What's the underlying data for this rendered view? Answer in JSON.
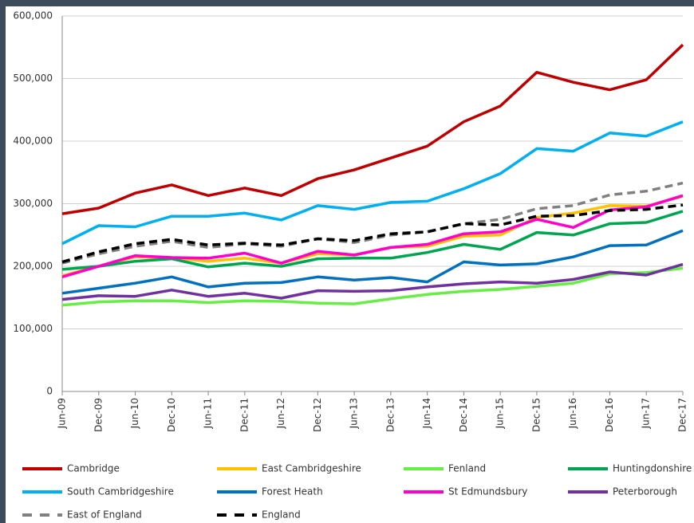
{
  "chart_data": {
    "type": "line",
    "categories": [
      "Jun-09",
      "Dec-09",
      "Jun-10",
      "Dec-10",
      "Jun-11",
      "Dec-11",
      "Jun-12",
      "Dec-12",
      "Jun-13",
      "Dec-13",
      "Jun-14",
      "Dec-14",
      "Jun-15",
      "Dec-15",
      "Jun-16",
      "Dec-16",
      "Jun-17",
      "Dec-17"
    ],
    "ylim": [
      0,
      600000
    ],
    "yticks": [
      0,
      {
        "value": 100000,
        "label": "100,000"
      },
      {
        "value": 200000,
        "label": "200,000"
      },
      {
        "value": 300000,
        "label": "300,000"
      },
      {
        "value": 400000,
        "label": "400,000"
      },
      {
        "value": 500000,
        "label": "500,000"
      },
      {
        "value": 600000,
        "label": "600,000"
      }
    ],
    "grid": true,
    "legend": "bottom",
    "series": [
      {
        "name": "Cambridge",
        "color": "#c00000",
        "dashed": false,
        "values": [
          284000,
          293000,
          317000,
          330000,
          313000,
          325000,
          313000,
          340000,
          354000,
          373000,
          392000,
          431000,
          456000,
          510000,
          494000,
          482000,
          498000,
          554000
        ]
      },
      {
        "name": "East Cambridgeshire",
        "color": "#ffc000",
        "dashed": false,
        "values": [
          185000,
          200000,
          215000,
          213000,
          208000,
          213000,
          205000,
          220000,
          218000,
          230000,
          232000,
          248000,
          250000,
          278000,
          285000,
          297000,
          296000,
          312000
        ]
      },
      {
        "name": "Fenland",
        "color": "#66ee44",
        "dashed": false,
        "values": [
          138000,
          143000,
          145000,
          145000,
          142000,
          145000,
          144000,
          141000,
          140000,
          148000,
          155000,
          160000,
          163000,
          168000,
          173000,
          188000,
          190000,
          197000
        ]
      },
      {
        "name": "Huntingdonshire",
        "color": "#00a550",
        "dashed": false,
        "values": [
          195000,
          200000,
          208000,
          212000,
          199000,
          205000,
          200000,
          212000,
          213000,
          213000,
          222000,
          235000,
          227000,
          254000,
          250000,
          268000,
          270000,
          288000
        ]
      },
      {
        "name": "South Cambridgeshire",
        "color": "#00b0f0",
        "dashed": false,
        "values": [
          236000,
          265000,
          263000,
          280000,
          280000,
          285000,
          274000,
          297000,
          291000,
          302000,
          304000,
          324000,
          348000,
          388000,
          384000,
          413000,
          408000,
          431000
        ]
      },
      {
        "name": "Forest Heath",
        "color": "#0070c0",
        "dashed": false,
        "values": [
          157000,
          165000,
          173000,
          183000,
          167000,
          173000,
          174000,
          183000,
          178000,
          182000,
          175000,
          207000,
          202000,
          204000,
          215000,
          233000,
          234000,
          257000
        ]
      },
      {
        "name": "St Edmundsbury",
        "color": "#ff00cc",
        "dashed": false,
        "values": [
          183000,
          200000,
          217000,
          214000,
          213000,
          221000,
          205000,
          224000,
          218000,
          230000,
          235000,
          252000,
          255000,
          275000,
          262000,
          290000,
          295000,
          313000
        ]
      },
      {
        "name": "Peterborough",
        "color": "#7030a0",
        "dashed": false,
        "values": [
          147000,
          153000,
          152000,
          162000,
          152000,
          157000,
          149000,
          161000,
          160000,
          161000,
          167000,
          172000,
          175000,
          173000,
          179000,
          191000,
          186000,
          203000
        ]
      },
      {
        "name": "East of England",
        "color": "#808080",
        "dashed": true,
        "values": [
          205000,
          220000,
          232000,
          240000,
          230000,
          236000,
          232000,
          244000,
          238000,
          250000,
          255000,
          268000,
          275000,
          292000,
          297000,
          314000,
          320000,
          333000
        ]
      },
      {
        "name": "England",
        "color": "#000000",
        "dashed": true,
        "values": [
          207000,
          223000,
          236000,
          243000,
          234000,
          237000,
          234000,
          244000,
          241000,
          252000,
          255000,
          268000,
          266000,
          280000,
          281000,
          289000,
          291000,
          298000
        ]
      }
    ]
  }
}
